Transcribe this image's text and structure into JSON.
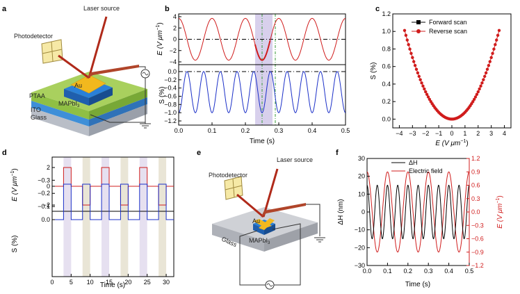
{
  "panel_labels": {
    "a": "a",
    "b": "b",
    "c": "c",
    "d": "d",
    "e": "e",
    "f": "f"
  },
  "schematic_a": {
    "laser_source": "Laser source",
    "photodetector": "Photodetector",
    "electrode": "Au",
    "layers": [
      "PTAA",
      "MAPbI",
      "ITO",
      "Glass"
    ],
    "mapbi_subscript": "3"
  },
  "schematic_e": {
    "laser_source": "Laser source",
    "photodetector": "Photodetector",
    "electrode": "Au",
    "perovskite": "MAPbI",
    "perovskite_subscript": "3",
    "substrate": "Glass"
  },
  "colors": {
    "red": "#d01c1c",
    "blue": "#1a2fc8",
    "highlight_b": "#d8d0ec",
    "shade_purple": "#e6e0f0",
    "shade_beige": "#e9e5d6",
    "gold": "#f2b81e",
    "pillar_blue": "#2a80d8"
  },
  "panel_b": {
    "xlabel": "Time (s)",
    "ylabel_top": "E (V μm",
    "ylabel_top_sup": "−1",
    "ylabel_top_close": ")",
    "ylabel_bottom": "S (%)",
    "x_ticks": [
      "0.0",
      "0.1",
      "0.2",
      "0.3",
      "0.4",
      "0.5"
    ],
    "y_ticks_top": [
      "4",
      "2",
      "0",
      "−2",
      "−4"
    ],
    "y_ticks_bottom": [
      "0.0",
      "−0.2",
      "−0.4",
      "−0.6",
      "−0.8",
      "−1.0",
      "−1.2"
    ]
  },
  "panel_c": {
    "xlabel": "E (V μm",
    "xlabel_sup": "−1",
    "xlabel_close": ")",
    "ylabel": "S (%)",
    "x_ticks": [
      "−4",
      "−3",
      "−2",
      "−1",
      "0",
      "1",
      "2",
      "3",
      "4"
    ],
    "y_ticks": [
      "1.2",
      "1.0",
      "0.8",
      "0.6",
      "0.4",
      "0.2",
      "0.0"
    ],
    "legend": [
      "Forward scan",
      "Reverse scan"
    ]
  },
  "panel_d": {
    "xlabel": "Time (s)",
    "ylabel_top": "E (V μm",
    "ylabel_top_sup": "−1",
    "ylabel_top_close": ")",
    "ylabel_bottom": "S (%)",
    "x_ticks": [
      "0",
      "5",
      "10",
      "15",
      "20",
      "25",
      "30"
    ],
    "y_ticks_top": [
      "2",
      "0",
      "−2"
    ],
    "y_ticks_bottom": [
      "0.0",
      "−0.1",
      "−0.2",
      "−0.3"
    ]
  },
  "panel_f": {
    "xlabel": "Time (s)",
    "ylabel_left": "ΔH (nm)",
    "ylabel_right": "E (V μm",
    "ylabel_right_sup": "−1",
    "ylabel_right_close": ")",
    "x_ticks": [
      "0.0",
      "0.1",
      "0.2",
      "0.3",
      "0.4",
      "0.5"
    ],
    "y_ticks_left": [
      "30",
      "20",
      "10",
      "0",
      "−10",
      "−20",
      "−30"
    ],
    "y_ticks_right": [
      "1.2",
      "0.9",
      "0.6",
      "0.3",
      "0.0",
      "−0.3",
      "−0.6",
      "−0.9",
      "−1.2"
    ],
    "legend": [
      "ΔH",
      "Electric field"
    ]
  },
  "chart_data": [
    {
      "type": "line",
      "xlabel": "Time (s)",
      "ylabel": "E (V μm−1)",
      "xlim": [
        0,
        0.5
      ],
      "ylim": [
        -4,
        4
      ],
      "series": [
        {
          "values": "sinusoid, amplitude 3.7 V μm−1, period 0.1 s, ~5 cycles"
        }
      ]
    },
    {
      "type": "line",
      "xlabel": "Time (s)",
      "ylabel": "S (%)",
      "xlim": [
        0,
        0.5
      ],
      "ylim": [
        -1.2,
        0.0
      ],
      "series": [
        {
          "values": "oscillates between 0.0 and −1.0 %, period 0.05 s"
        }
      ]
    },
    {
      "type": "scatter",
      "xlabel": "E (V μm−1)",
      "ylabel": "S (%)",
      "xlim": [
        -4,
        4
      ],
      "ylim": [
        0,
        1.2
      ],
      "series": [
        {
          "name": "Forward scan",
          "values": "parabola S≈0.078·E², 0 at E=0, ≈1.0 at E=±3.6"
        },
        {
          "name": "Reverse scan",
          "values": "overlaps forward scan"
        }
      ]
    },
    {
      "type": "line",
      "xlabel": "Time (s)",
      "ylabel": "E (V μm−1)",
      "xlim": [
        0,
        32
      ],
      "ylim": [
        -3,
        3
      ],
      "series": [
        {
          "values": "square wave ±2 V μm−1, on at 3–5, 8–10, 13–15, 18–20, 23–25, 28–30 s"
        }
      ]
    },
    {
      "type": "line",
      "xlabel": "Time (s)",
      "ylabel": "S (%)",
      "xlim": [
        0,
        32
      ],
      "ylim": [
        -0.35,
        0.05
      ],
      "series": [
        {
          "values": "square wave between 0.0 and −0.27 %"
        }
      ]
    },
    {
      "type": "line",
      "xlabel": "Time (s)",
      "xlim": [
        0,
        0.5
      ],
      "series": [
        {
          "name": "ΔH",
          "axis": "left",
          "ylim": [
            -30,
            30
          ],
          "values": "oscillates ±15 nm, period 0.05 s"
        },
        {
          "name": "Electric field",
          "axis": "right",
          "ylim": [
            -1.2,
            1.2
          ],
          "values": "sinusoid ±0.9 V μm−1, period 0.1 s"
        }
      ]
    }
  ]
}
